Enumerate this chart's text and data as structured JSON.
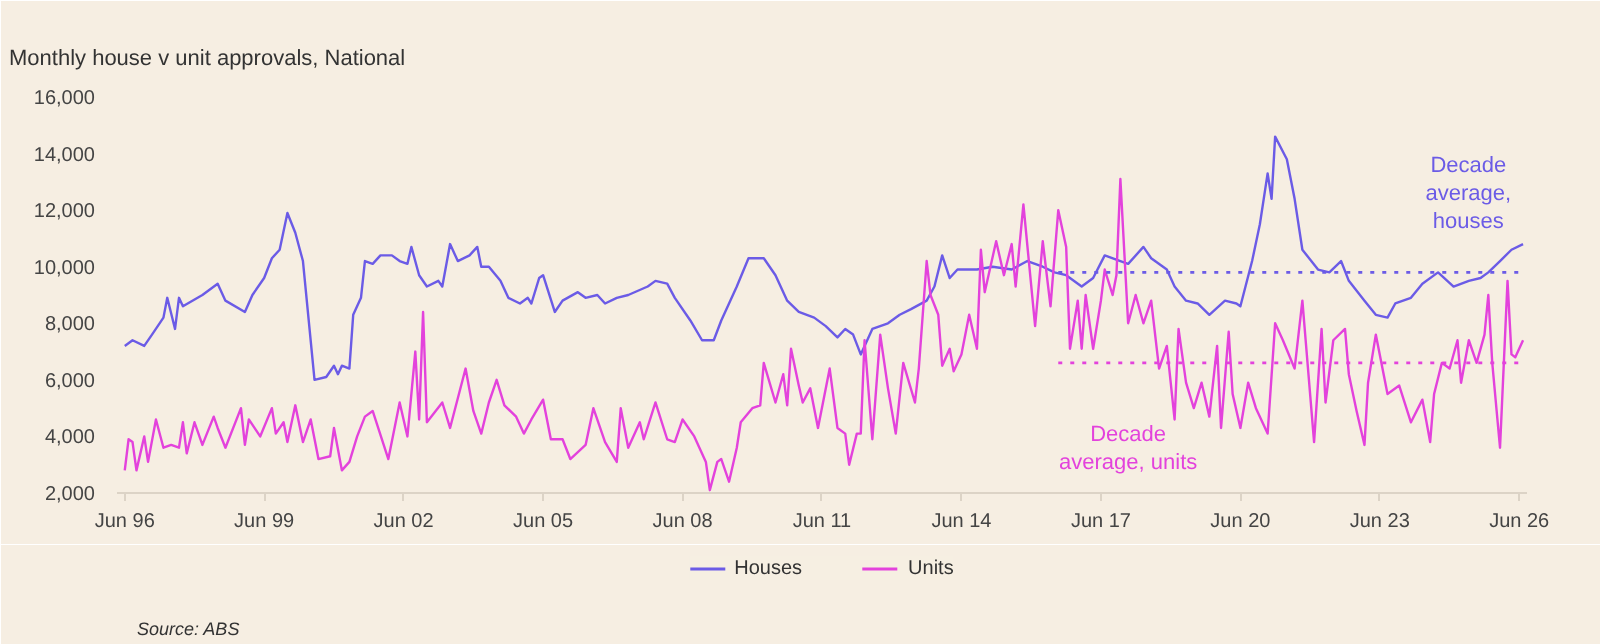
{
  "chart_data": {
    "type": "line",
    "title": "Monthly house v unit approvals, National",
    "xlim": [
      "1996-04",
      "2026-08"
    ],
    "xticks": [
      {
        "value": "1996-06",
        "label": "Jun 96"
      },
      {
        "value": "1999-06",
        "label": "Jun 99"
      },
      {
        "value": "2002-06",
        "label": "Jun 02"
      },
      {
        "value": "2005-06",
        "label": "Jun 05"
      },
      {
        "value": "2008-06",
        "label": "Jun 08"
      },
      {
        "value": "2011-06",
        "label": "Jun 11"
      },
      {
        "value": "2014-06",
        "label": "Jun 14"
      },
      {
        "value": "2017-06",
        "label": "Jun 17"
      },
      {
        "value": "2020-06",
        "label": "Jun 20"
      },
      {
        "value": "2023-06",
        "label": "Jun 23"
      },
      {
        "value": "2026-06",
        "label": "Jun 26"
      }
    ],
    "ylim": [
      2000,
      16000
    ],
    "yticks": [
      {
        "value": 2000,
        "label": "2,000"
      },
      {
        "value": 4000,
        "label": "4,000"
      },
      {
        "value": 6000,
        "label": "6,000"
      },
      {
        "value": 8000,
        "label": "8,000"
      },
      {
        "value": 10000,
        "label": "10,000"
      },
      {
        "value": 12000,
        "label": "12,000"
      },
      {
        "value": 14000,
        "label": "14,000"
      },
      {
        "value": 16000,
        "label": "16,000"
      }
    ],
    "grid": false,
    "legend": "bottom",
    "line_style": "solid",
    "marker": "none",
    "series": [
      {
        "name": "Houses",
        "color": "#6b5be6",
        "x": [
          "1996-06",
          "1996-08",
          "1996-11",
          "1997-01",
          "1997-04",
          "1997-05",
          "1997-07",
          "1997-08",
          "1997-09",
          "1998-02",
          "1998-06",
          "1998-08",
          "1999-01",
          "1999-03",
          "1999-06",
          "1999-08",
          "1999-10",
          "1999-12",
          "2000-02",
          "2000-04",
          "2000-07",
          "2000-10",
          "2000-12",
          "2001-01",
          "2001-02",
          "2001-04",
          "2001-05",
          "2001-07",
          "2001-08",
          "2001-10",
          "2001-12",
          "2002-03",
          "2002-05",
          "2002-07",
          "2002-08",
          "2002-10",
          "2002-12",
          "2003-03",
          "2003-04",
          "2003-06",
          "2003-08",
          "2003-11",
          "2004-01",
          "2004-02",
          "2004-04",
          "2004-07",
          "2004-09",
          "2004-12",
          "2005-02",
          "2005-03",
          "2005-05",
          "2005-06",
          "2005-09",
          "2005-11",
          "2006-03",
          "2006-05",
          "2006-08",
          "2006-10",
          "2007-01",
          "2007-04",
          "2007-09",
          "2007-11",
          "2008-02",
          "2008-04",
          "2008-08",
          "2008-11",
          "2009-02",
          "2009-04",
          "2009-08",
          "2009-11",
          "2010-01",
          "2010-03",
          "2010-06",
          "2010-09",
          "2010-12",
          "2011-04",
          "2011-07",
          "2011-10",
          "2011-12",
          "2012-02",
          "2012-04",
          "2012-07",
          "2012-11",
          "2013-02",
          "2013-05",
          "2013-09",
          "2013-11",
          "2014-01",
          "2014-03",
          "2014-05",
          "2014-10",
          "2015-02",
          "2015-07",
          "2015-11",
          "2016-03",
          "2016-06",
          "2016-09",
          "2017-01",
          "2017-04",
          "2017-07",
          "2017-11",
          "2018-01",
          "2018-05",
          "2018-07",
          "2018-11",
          "2019-01",
          "2019-04",
          "2019-07",
          "2019-10",
          "2020-02",
          "2020-05",
          "2020-06",
          "2020-09",
          "2020-11",
          "2021-01",
          "2021-02",
          "2021-03",
          "2021-06",
          "2021-08",
          "2021-10",
          "2022-02",
          "2022-05",
          "2022-08",
          "2022-10",
          "2023-02",
          "2023-05",
          "2023-08",
          "2023-10",
          "2024-02",
          "2024-05",
          "2024-09",
          "2025-01",
          "2025-05",
          "2025-08",
          "2025-10",
          "2026-01",
          "2026-04",
          "2026-07"
        ],
        "values": [
          7200,
          7400,
          7200,
          7600,
          8200,
          8900,
          7800,
          8900,
          8600,
          9000,
          9400,
          8800,
          8400,
          9000,
          9600,
          10300,
          10600,
          11900,
          11200,
          10200,
          6000,
          6100,
          6500,
          6200,
          6500,
          6400,
          8300,
          8900,
          10200,
          10100,
          10400,
          10400,
          10200,
          10100,
          10700,
          9700,
          9300,
          9500,
          9300,
          10800,
          10200,
          10400,
          10700,
          10000,
          10000,
          9500,
          8900,
          8700,
          8900,
          8700,
          9600,
          9700,
          8400,
          8800,
          9100,
          8900,
          9000,
          8700,
          8900,
          9000,
          9300,
          9500,
          9400,
          8900,
          8100,
          7400,
          7400,
          8100,
          9300,
          10300,
          10300,
          10300,
          9700,
          8800,
          8400,
          8200,
          7900,
          7500,
          7800,
          7600,
          6900,
          7800,
          8000,
          8300,
          8500,
          8800,
          9300,
          10400,
          9600,
          9900,
          9900,
          10000,
          9900,
          10200,
          10000,
          9800,
          9700,
          9300,
          9600,
          10400,
          10200,
          10100,
          10700,
          10300,
          9900,
          9300,
          8800,
          8700,
          8300,
          8800,
          8700,
          8600,
          10200,
          11500,
          13300,
          12400,
          14600,
          13800,
          12400,
          10600,
          9900,
          9800,
          10200,
          9500,
          8800,
          8300,
          8200,
          8700,
          8900,
          9400,
          9800,
          9300,
          9500,
          9600,
          9800,
          10200,
          10600,
          10800
        ]
      },
      {
        "name": "Units",
        "color": "#e342dc",
        "x": [
          "1996-06",
          "1996-07",
          "1996-08",
          "1996-09",
          "1996-11",
          "1996-12",
          "1997-02",
          "1997-04",
          "1997-06",
          "1997-08",
          "1997-09",
          "1997-10",
          "1997-12",
          "1998-02",
          "1998-05",
          "1998-06",
          "1998-08",
          "1998-12",
          "1999-01",
          "1999-02",
          "1999-05",
          "1999-08",
          "1999-09",
          "1999-11",
          "1999-12",
          "2000-02",
          "2000-04",
          "2000-06",
          "2000-08",
          "2000-11",
          "2000-12",
          "2001-02",
          "2001-04",
          "2001-06",
          "2001-08",
          "2001-10",
          "2002-02",
          "2002-05",
          "2002-07",
          "2002-09",
          "2002-10",
          "2002-11",
          "2002-12",
          "2003-04",
          "2003-06",
          "2003-10",
          "2003-12",
          "2004-02",
          "2004-04",
          "2004-06",
          "2004-08",
          "2004-11",
          "2005-01",
          "2005-03",
          "2005-06",
          "2005-08",
          "2005-11",
          "2006-01",
          "2006-05",
          "2006-07",
          "2006-10",
          "2007-01",
          "2007-02",
          "2007-04",
          "2007-07",
          "2007-08",
          "2007-11",
          "2008-02",
          "2008-04",
          "2008-06",
          "2008-09",
          "2008-12",
          "2009-01",
          "2009-03",
          "2009-04",
          "2009-06",
          "2009-08",
          "2009-09",
          "2009-12",
          "2010-02",
          "2010-03",
          "2010-06",
          "2010-08",
          "2010-09",
          "2010-10",
          "2010-12",
          "2011-01",
          "2011-03",
          "2011-05",
          "2011-08",
          "2011-10",
          "2011-12",
          "2012-01",
          "2012-03",
          "2012-04",
          "2012-05",
          "2012-07",
          "2012-09",
          "2012-11",
          "2013-01",
          "2013-03",
          "2013-06",
          "2013-07",
          "2013-09",
          "2013-10",
          "2013-12",
          "2014-01",
          "2014-03",
          "2014-04",
          "2014-06",
          "2014-08",
          "2014-10",
          "2014-11",
          "2014-12",
          "2015-03",
          "2015-05",
          "2015-07",
          "2015-08",
          "2015-10",
          "2016-01",
          "2016-03",
          "2016-05",
          "2016-07",
          "2016-09",
          "2016-10",
          "2016-12",
          "2017-01",
          "2017-02",
          "2017-04",
          "2017-06",
          "2017-07",
          "2017-09",
          "2017-10",
          "2017-11",
          "2018-01",
          "2018-03",
          "2018-05",
          "2018-07",
          "2018-09",
          "2018-11",
          "2019-01",
          "2019-02",
          "2019-04",
          "2019-06",
          "2019-08",
          "2019-10",
          "2019-12",
          "2020-01",
          "2020-03",
          "2020-04",
          "2020-06",
          "2020-08",
          "2020-10",
          "2021-01",
          "2021-03",
          "2021-05",
          "2021-08",
          "2021-10",
          "2022-01",
          "2022-03",
          "2022-04",
          "2022-06",
          "2022-09",
          "2022-10",
          "2022-12",
          "2023-02",
          "2023-03",
          "2023-05",
          "2023-08",
          "2023-11",
          "2024-02",
          "2024-05",
          "2024-07",
          "2024-08",
          "2024-10",
          "2024-12",
          "2025-02",
          "2025-03",
          "2025-05",
          "2025-07",
          "2025-09",
          "2025-10",
          "2025-11",
          "2026-01",
          "2026-03",
          "2026-04",
          "2026-05",
          "2026-07"
        ],
        "values": [
          2800,
          3900,
          3800,
          2800,
          4000,
          3100,
          4600,
          3600,
          3700,
          3600,
          4500,
          3400,
          4500,
          3700,
          4700,
          4300,
          3600,
          5000,
          3700,
          4600,
          4000,
          5000,
          4100,
          4500,
          3800,
          5100,
          3800,
          4600,
          3200,
          3300,
          4300,
          2800,
          3100,
          4000,
          4700,
          4900,
          3200,
          5200,
          4000,
          7000,
          4600,
          8400,
          4500,
          5200,
          4300,
          6400,
          4900,
          4100,
          5200,
          6000,
          5100,
          4700,
          4100,
          4600,
          5300,
          3900,
          3900,
          3200,
          3700,
          5000,
          3800,
          3100,
          5000,
          3600,
          4500,
          3900,
          5200,
          3900,
          3800,
          4600,
          4000,
          3100,
          2100,
          3100,
          3200,
          2400,
          3600,
          4500,
          5000,
          5100,
          6600,
          5200,
          6200,
          5100,
          7100,
          5800,
          5200,
          5700,
          4300,
          6400,
          4300,
          4100,
          3000,
          4100,
          4100,
          7400,
          3900,
          7600,
          5700,
          4100,
          6600,
          5200,
          6400,
          10200,
          9000,
          8300,
          6500,
          7100,
          6300,
          6900,
          8300,
          7100,
          10600,
          9100,
          10900,
          9700,
          10800,
          9300,
          12200,
          7900,
          10900,
          8600,
          12000,
          10700,
          7100,
          8800,
          7100,
          9000,
          7100,
          8800,
          9900,
          9000,
          9700,
          13100,
          8000,
          9000,
          8000,
          8800,
          6400,
          7200,
          4600,
          7800,
          5900,
          5000,
          5900,
          4700,
          7200,
          4300,
          7700,
          5500,
          4300,
          5900,
          5000,
          4100,
          8000,
          7400,
          6400,
          8800,
          3800,
          7800,
          5200,
          7400,
          7800,
          6200,
          4900,
          3700,
          5900,
          7600,
          5500,
          5800,
          4500,
          5300,
          3800,
          5500,
          6600,
          6400,
          7400,
          5900,
          7400,
          6600,
          7600,
          9000,
          6600,
          3600,
          9500,
          6900,
          6800,
          7400
        ]
      },
      {
        "color": "#6b5be6",
        "line_style": "dotted",
        "x": [
          "2016-07",
          "2026-07"
        ],
        "values": [
          9800,
          9800
        ]
      },
      {
        "color": "#e342dc",
        "line_style": "dotted",
        "x": [
          "2016-07",
          "2026-07"
        ],
        "values": [
          6600,
          6600
        ]
      }
    ],
    "annotations": [
      {
        "text": "Decade average, houses",
        "x": "2025-10",
        "y": 9800
      },
      {
        "text": "Decade average, units",
        "x": "2018-01",
        "y": 6600
      },
      "Source: ABS"
    ]
  }
}
